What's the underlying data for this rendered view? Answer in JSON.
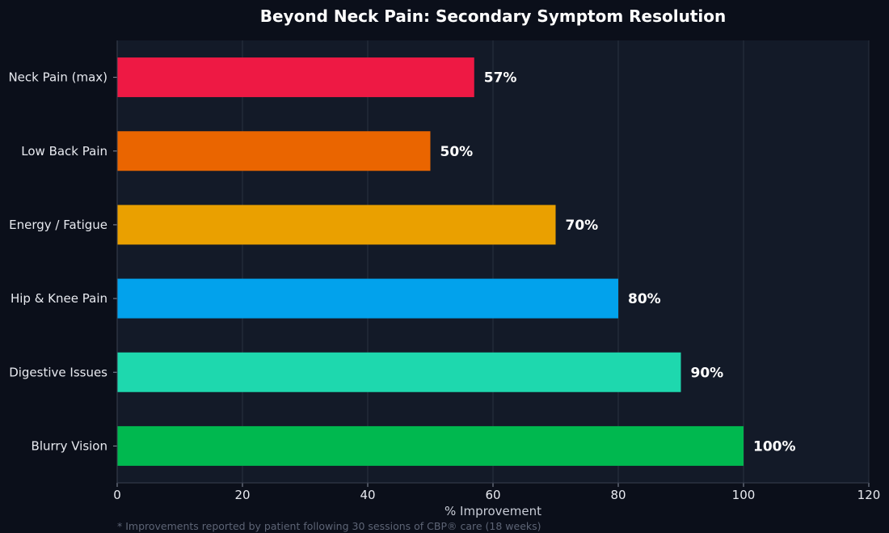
{
  "chart_data": {
    "type": "bar",
    "orientation": "horizontal",
    "title": "Beyond Neck Pain: Secondary Symptom Resolution",
    "categories": [
      "Neck Pain (max)",
      "Low Back Pain",
      "Energy / Fatigue",
      "Hip & Knee Pain",
      "Digestive Issues",
      "Blurry Vision"
    ],
    "values": [
      57,
      50,
      70,
      80,
      90,
      100
    ],
    "value_labels": [
      "57%",
      "50%",
      "70%",
      "80%",
      "90%",
      "100%"
    ],
    "colors": [
      "#ee1944",
      "#ea6500",
      "#eaa000",
      "#02a2ec",
      "#1ed8ae",
      "#00b84f"
    ],
    "xlabel": "% Improvement",
    "ylabel": "",
    "xlim": [
      0,
      120
    ],
    "xticks": [
      0,
      20,
      40,
      60,
      80,
      100,
      120
    ],
    "xtick_labels": [
      "0",
      "20",
      "40",
      "60",
      "80",
      "100",
      "120"
    ],
    "grid": true,
    "footnote": "* Improvements reported by patient following 30 sessions of CBP® care (18 weeks)"
  }
}
